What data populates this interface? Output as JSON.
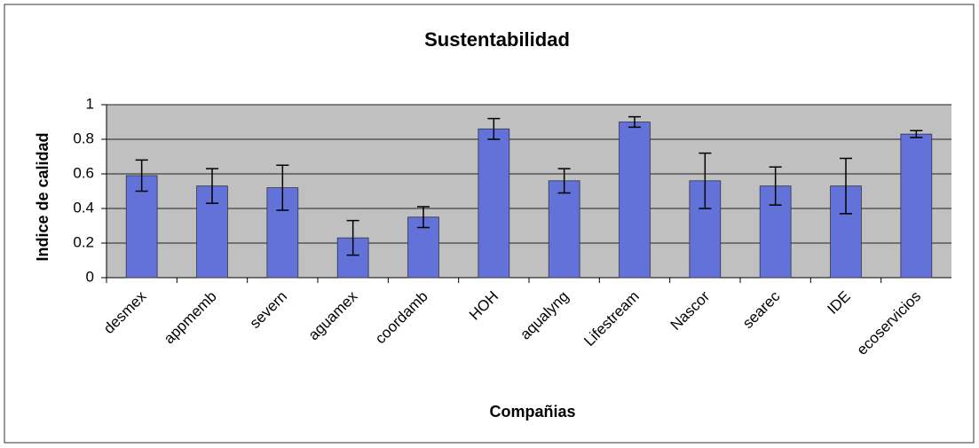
{
  "chart_data": {
    "type": "bar",
    "title": "Sustentabilidad",
    "x_label": "Compañias",
    "y_label": "Indice de calidad",
    "categories": [
      "desmex",
      "appmemb",
      "severn",
      "aguamex",
      "coordamb",
      "HOH",
      "aqualyng",
      "Lifestream",
      "Nascor",
      "searec",
      "IDE",
      "ecoservicios"
    ],
    "values": [
      0.59,
      0.53,
      0.52,
      0.23,
      0.35,
      0.86,
      0.56,
      0.9,
      0.56,
      0.53,
      0.53,
      0.83
    ],
    "errors": [
      0.09,
      0.1,
      0.13,
      0.1,
      0.06,
      0.06,
      0.07,
      0.03,
      0.16,
      0.11,
      0.16,
      0.02
    ],
    "color": "#6272d8",
    "ylim": [
      0,
      1
    ],
    "yticks": [
      0,
      0.2,
      0.4,
      0.6,
      0.8,
      1
    ],
    "grid": true
  }
}
